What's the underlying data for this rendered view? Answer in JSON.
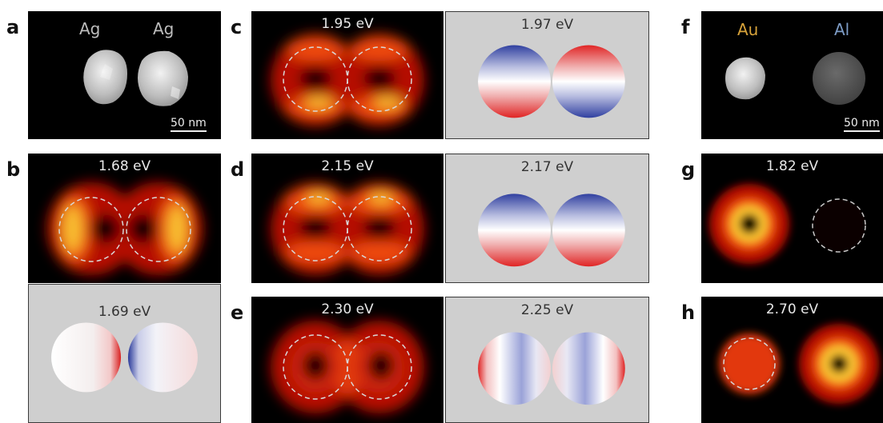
{
  "panel_labels": {
    "a": "a",
    "b": "b",
    "c": "c",
    "d": "d",
    "e": "e",
    "f": "f",
    "g": "g",
    "h": "h"
  },
  "panel_a": {
    "left_label": "Ag",
    "right_label": "Ag",
    "scale_bar": "50 nm"
  },
  "panel_b": {
    "measured_energy": "1.68 eV",
    "simulated_energy": "1.69 eV"
  },
  "panel_c": {
    "measured_energy": "1.95 eV",
    "simulated_energy": "1.97 eV"
  },
  "panel_d": {
    "measured_energy": "2.15 eV",
    "simulated_energy": "2.17 eV"
  },
  "panel_e": {
    "measured_energy": "2.30 eV",
    "simulated_energy": "2.25 eV"
  },
  "panel_f": {
    "left_label": "Au",
    "right_label": "Al",
    "scale_bar": "50 nm"
  },
  "panel_g": {
    "measured_energy": "1.82 eV"
  },
  "panel_h": {
    "measured_energy": "2.70 eV"
  },
  "colors": {
    "au_label": "#d8a33a",
    "al_label": "#7d9cc6",
    "positive": "#e02020",
    "negative": "#2a3a9a"
  }
}
